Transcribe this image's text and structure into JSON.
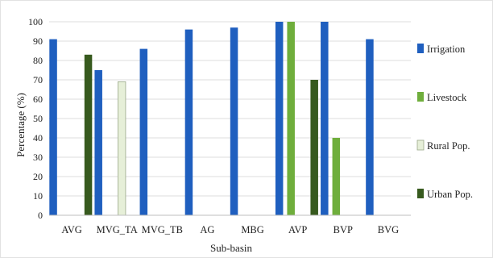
{
  "chart_data": {
    "type": "bar",
    "xlabel": "Sub-basin",
    "ylabel": "Percentage (%)",
    "ylim": [
      0,
      100
    ],
    "ytick_step": 10,
    "grid": true,
    "legend_position": "right",
    "categories": [
      "AVG",
      "MVG_TA",
      "MVG_TB",
      "AG",
      "MBG",
      "AVP",
      "BVP",
      "BVG"
    ],
    "series": [
      {
        "name": "Irrigation",
        "color": "#1f5fbf",
        "values": [
          91,
          75,
          86,
          96,
          97,
          100,
          100,
          91
        ]
      },
      {
        "name": "Livestock",
        "color": "#6fae3c",
        "values": [
          null,
          null,
          null,
          null,
          null,
          100,
          40,
          null
        ]
      },
      {
        "name": "Rural Pop.",
        "color": "#e6efd8",
        "values": [
          null,
          69,
          null,
          null,
          null,
          null,
          null,
          null
        ]
      },
      {
        "name": "Urban Pop.",
        "color": "#375a1e",
        "values": [
          83,
          null,
          null,
          null,
          null,
          70,
          null,
          null
        ]
      }
    ]
  }
}
